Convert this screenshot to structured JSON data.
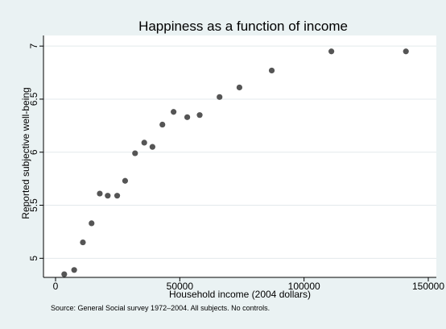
{
  "chart_data": {
    "type": "scatter",
    "title": "Happiness as a function of income",
    "xlabel": "Household income (2004 dollars)",
    "ylabel": "Reported subjective well-being",
    "note": "Source: General Social survey 1972–2004. All subjects. No controls.",
    "xlim": [
      0,
      150000
    ],
    "ylim": [
      4.82,
      7.1
    ],
    "xticks": [
      0,
      50000,
      100000,
      150000
    ],
    "xtick_labels": [
      "0",
      "50000",
      "100000",
      "150000"
    ],
    "yticks": [
      5,
      5.5,
      6,
      6.5,
      7
    ],
    "ytick_labels": [
      "5",
      "5.5",
      "6",
      "6.5",
      "7"
    ],
    "grid": "horizontal",
    "marker_color": "#555555",
    "points": [
      {
        "x": 3500,
        "y": 4.85
      },
      {
        "x": 7500,
        "y": 4.89
      },
      {
        "x": 11000,
        "y": 5.15
      },
      {
        "x": 14500,
        "y": 5.33
      },
      {
        "x": 17800,
        "y": 5.61
      },
      {
        "x": 21000,
        "y": 5.59
      },
      {
        "x": 24800,
        "y": 5.59
      },
      {
        "x": 28000,
        "y": 5.73
      },
      {
        "x": 32000,
        "y": 5.99
      },
      {
        "x": 35700,
        "y": 6.09
      },
      {
        "x": 39000,
        "y": 6.05
      },
      {
        "x": 43000,
        "y": 6.26
      },
      {
        "x": 47500,
        "y": 6.38
      },
      {
        "x": 53000,
        "y": 6.33
      },
      {
        "x": 58000,
        "y": 6.35
      },
      {
        "x": 66000,
        "y": 6.52
      },
      {
        "x": 74000,
        "y": 6.61
      },
      {
        "x": 87000,
        "y": 6.77
      },
      {
        "x": 111000,
        "y": 6.95
      },
      {
        "x": 141000,
        "y": 6.95
      }
    ]
  }
}
